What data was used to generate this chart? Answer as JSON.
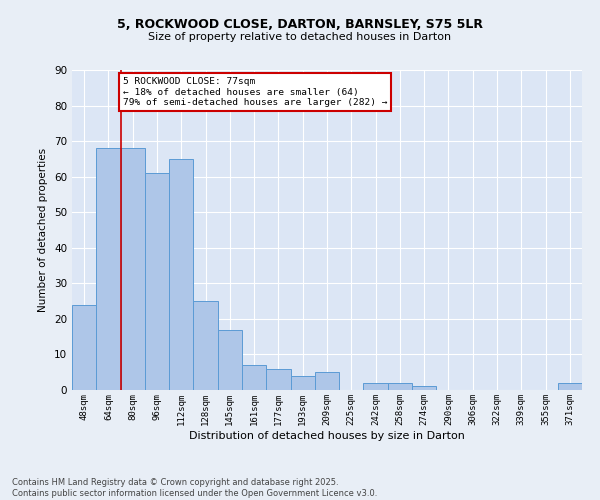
{
  "title_line1": "5, ROCKWOOD CLOSE, DARTON, BARNSLEY, S75 5LR",
  "title_line2": "Size of property relative to detached houses in Darton",
  "xlabel": "Distribution of detached houses by size in Darton",
  "ylabel": "Number of detached properties",
  "categories": [
    "48sqm",
    "64sqm",
    "80sqm",
    "96sqm",
    "112sqm",
    "128sqm",
    "145sqm",
    "161sqm",
    "177sqm",
    "193sqm",
    "209sqm",
    "225sqm",
    "242sqm",
    "258sqm",
    "274sqm",
    "290sqm",
    "306sqm",
    "322sqm",
    "339sqm",
    "355sqm",
    "371sqm"
  ],
  "values": [
    24,
    68,
    68,
    61,
    65,
    25,
    17,
    7,
    6,
    4,
    5,
    0,
    2,
    2,
    1,
    0,
    0,
    0,
    0,
    0,
    2
  ],
  "bar_color": "#aec6e8",
  "bar_edge_color": "#5b9bd5",
  "property_line_x": 1.5,
  "annotation_text": "5 ROCKWOOD CLOSE: 77sqm\n← 18% of detached houses are smaller (64)\n79% of semi-detached houses are larger (282) →",
  "annotation_box_color": "#ffffff",
  "annotation_box_edge": "#cc0000",
  "property_line_color": "#cc0000",
  "background_color": "#e8eef6",
  "plot_bg_color": "#dce6f5",
  "grid_color": "#ffffff",
  "footer_text": "Contains HM Land Registry data © Crown copyright and database right 2025.\nContains public sector information licensed under the Open Government Licence v3.0.",
  "ylim": [
    0,
    90
  ],
  "yticks": [
    0,
    10,
    20,
    30,
    40,
    50,
    60,
    70,
    80,
    90
  ],
  "title_fontsize": 9,
  "subtitle_fontsize": 8,
  "ylabel_fontsize": 7.5,
  "xlabel_fontsize": 8
}
